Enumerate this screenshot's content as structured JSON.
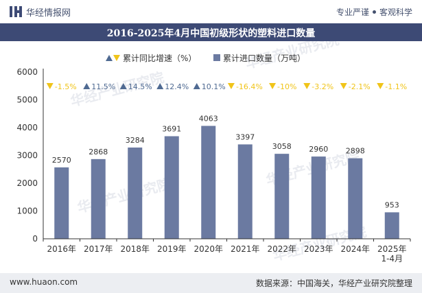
{
  "header": {
    "brand": "华经情报网",
    "slogan_left": "专业严谨",
    "slogan_right": "客观科学"
  },
  "title": "2016-2025年4月中国初级形状的塑料进口数量",
  "footer": {
    "url": "www.huaon.com",
    "source": "数据来源：中国海关，华经产业研究院整理"
  },
  "watermark": {
    "text_cn": "华经产业研究院",
    "text_url": "www.huaon.com"
  },
  "colors": {
    "bar": "#6b7aa1",
    "up": "#4f6a92",
    "down": "#f0c419",
    "title_bg": "#3d4a75"
  },
  "chart_data": {
    "type": "bar",
    "categories": [
      "2016年",
      "2017年",
      "2018年",
      "2019年",
      "2020年",
      "2021年",
      "2022年",
      "2023年",
      "2024年",
      "2025年\n1-4月"
    ],
    "series": [
      {
        "name": "累计进口数量（万吨）",
        "values": [
          2570,
          2868,
          3284,
          3691,
          4063,
          3397,
          3058,
          2960,
          2898,
          953
        ]
      },
      {
        "name": "累计同比增速（%）",
        "values": [
          -1.5,
          11.5,
          14.5,
          12.4,
          10.1,
          -16.4,
          -10,
          -3.2,
          -2.1,
          -1.1
        ],
        "labels": [
          "-1.5%",
          "11.5%",
          "14.5%",
          "12.4%",
          "10.1%",
          "-16.4%",
          "-10%",
          "-3.2%",
          "-2.1%",
          "-1.1%"
        ]
      }
    ],
    "ylim": [
      0,
      6000
    ],
    "yticks": [
      0,
      1000,
      2000,
      3000,
      4000,
      5000,
      6000
    ],
    "legend_position": "top-center"
  }
}
